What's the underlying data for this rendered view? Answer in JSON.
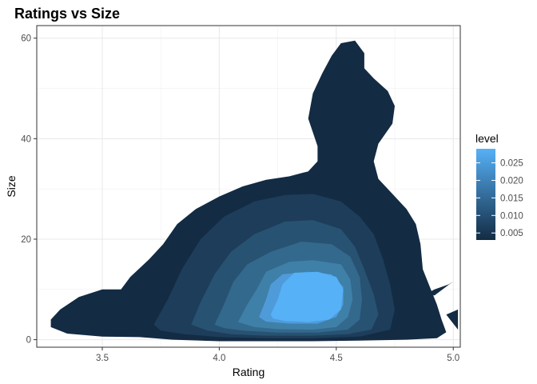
{
  "chart_data": {
    "type": "contour",
    "title": "Ratings vs Size",
    "xlabel": "Rating",
    "ylabel": "Size",
    "xlim": [
      3.22,
      5.03
    ],
    "ylim": [
      -1.5,
      62.5
    ],
    "x_ticks": [
      3.5,
      4.0,
      4.5,
      5.0
    ],
    "x_tick_labels": [
      "3.5",
      "4.0",
      "4.5",
      "5.0"
    ],
    "y_ticks": [
      0,
      20,
      40,
      60
    ],
    "y_tick_labels": [
      "0",
      "20",
      "40",
      "60"
    ],
    "grid": true,
    "legend": {
      "title": "level",
      "position": "right",
      "color_low": "#132B43",
      "color_high": "#56B1F7",
      "range": [
        0.003,
        0.029
      ],
      "ticks": [
        0.005,
        0.01,
        0.015,
        0.02,
        0.025
      ],
      "tick_labels": [
        "0.005",
        "0.010",
        "0.015",
        "0.020",
        "0.025"
      ]
    },
    "levels": [
      {
        "level": 0.005,
        "color": "#132B43",
        "polygons": [
          [
            [
              3.28,
              4
            ],
            [
              3.32,
              6
            ],
            [
              3.4,
              8.5
            ],
            [
              3.5,
              10
            ],
            [
              3.58,
              10
            ],
            [
              3.62,
              12.5
            ],
            [
              3.7,
              16
            ],
            [
              3.76,
              19
            ],
            [
              3.82,
              23
            ],
            [
              3.9,
              26
            ],
            [
              4.0,
              28.5
            ],
            [
              4.1,
              30.5
            ],
            [
              4.2,
              31.8
            ],
            [
              4.3,
              32.5
            ],
            [
              4.38,
              33.5
            ],
            [
              4.42,
              35.5
            ],
            [
              4.42,
              38.5
            ],
            [
              4.38,
              44
            ],
            [
              4.4,
              49
            ],
            [
              4.44,
              53
            ],
            [
              4.48,
              56.5
            ],
            [
              4.52,
              59
            ],
            [
              4.58,
              59.5
            ],
            [
              4.62,
              57
            ],
            [
              4.62,
              54
            ],
            [
              4.66,
              52
            ],
            [
              4.72,
              49.5
            ],
            [
              4.75,
              46.5
            ],
            [
              4.74,
              43
            ],
            [
              4.68,
              39
            ],
            [
              4.66,
              35.5
            ],
            [
              4.68,
              32
            ],
            [
              4.74,
              29
            ],
            [
              4.8,
              26
            ],
            [
              4.84,
              23
            ],
            [
              4.86,
              19
            ],
            [
              4.87,
              14
            ],
            [
              4.9,
              10.5
            ],
            [
              4.93,
              7
            ],
            [
              4.95,
              4
            ],
            [
              4.97,
              1.5
            ],
            [
              4.93,
              0.3
            ],
            [
              4.8,
              0
            ],
            [
              4.6,
              -0.2
            ],
            [
              4.4,
              -0.3
            ],
            [
              4.2,
              -0.3
            ],
            [
              4.0,
              -0.3
            ],
            [
              3.8,
              0
            ],
            [
              3.66,
              0.5
            ],
            [
              3.5,
              0.6
            ],
            [
              3.35,
              1.2
            ],
            [
              3.28,
              2.5
            ]
          ],
          [
            [
              4.88,
              9
            ],
            [
              4.92,
              10
            ],
            [
              4.98,
              11
            ],
            [
              5.0,
              11.6
            ],
            [
              4.96,
              10.2
            ],
            [
              4.92,
              8.8
            ]
          ],
          [
            [
              4.97,
              5
            ],
            [
              5.02,
              6
            ],
            [
              5.02,
              2
            ]
          ]
        ]
      },
      {
        "level": 0.01,
        "color": "#1D3D5A",
        "polygons": [
          [
            [
              3.72,
              3
            ],
            [
              3.78,
              8
            ],
            [
              3.84,
              14
            ],
            [
              3.92,
              20
            ],
            [
              4.02,
              24.5
            ],
            [
              4.15,
              27.5
            ],
            [
              4.28,
              28.8
            ],
            [
              4.4,
              29
            ],
            [
              4.52,
              27.5
            ],
            [
              4.6,
              24.5
            ],
            [
              4.66,
              21
            ],
            [
              4.7,
              16
            ],
            [
              4.73,
              11
            ],
            [
              4.75,
              6
            ],
            [
              4.73,
              2
            ],
            [
              4.6,
              0.6
            ],
            [
              4.4,
              0.3
            ],
            [
              4.2,
              0.3
            ],
            [
              4.0,
              0.5
            ],
            [
              3.85,
              1.1
            ],
            [
              3.75,
              1.8
            ]
          ]
        ]
      },
      {
        "level": 0.015,
        "color": "#285272",
        "polygons": [
          [
            [
              3.88,
              3
            ],
            [
              3.92,
              7.5
            ],
            [
              3.98,
              13
            ],
            [
              4.05,
              17.5
            ],
            [
              4.15,
              21
            ],
            [
              4.28,
              23.5
            ],
            [
              4.4,
              23.8
            ],
            [
              4.52,
              22
            ],
            [
              4.58,
              18.5
            ],
            [
              4.62,
              14
            ],
            [
              4.66,
              9
            ],
            [
              4.68,
              5
            ],
            [
              4.65,
              2
            ],
            [
              4.55,
              1.1
            ],
            [
              4.4,
              0.8
            ],
            [
              4.2,
              0.8
            ],
            [
              4.05,
              1.1
            ],
            [
              3.95,
              1.8
            ]
          ]
        ]
      },
      {
        "level": 0.02,
        "color": "#33698C",
        "polygons": [
          [
            [
              3.98,
              3
            ],
            [
              4.02,
              7
            ],
            [
              4.06,
              11.5
            ],
            [
              4.12,
              15
            ],
            [
              4.22,
              17.5
            ],
            [
              4.35,
              19.5
            ],
            [
              4.48,
              19
            ],
            [
              4.56,
              16.5
            ],
            [
              4.6,
              12.5
            ],
            [
              4.61,
              8
            ],
            [
              4.6,
              4
            ],
            [
              4.55,
              2
            ],
            [
              4.42,
              1.4
            ],
            [
              4.25,
              1.4
            ],
            [
              4.1,
              1.8
            ],
            [
              4.02,
              2.3
            ]
          ]
        ]
      },
      {
        "level": 0.025,
        "color": "#3F80A8",
        "polygons": [
          [
            [
              4.08,
              3.5
            ],
            [
              4.12,
              7
            ],
            [
              4.16,
              10
            ],
            [
              4.2,
              13.5
            ],
            [
              4.3,
              15.5
            ],
            [
              4.4,
              15.8
            ],
            [
              4.52,
              15
            ],
            [
              4.56,
              12
            ],
            [
              4.57,
              8
            ],
            [
              4.55,
              4.5
            ],
            [
              4.5,
              2.5
            ],
            [
              4.4,
              2
            ],
            [
              4.25,
              2.1
            ],
            [
              4.15,
              2.5
            ]
          ]
        ]
      },
      {
        "level": 0.028,
        "color": "#4F9BDA",
        "polygons": [
          [
            [
              4.17,
              4.5
            ],
            [
              4.2,
              8
            ],
            [
              4.22,
              11
            ],
            [
              4.27,
              13
            ],
            [
              4.38,
              13.5
            ],
            [
              4.48,
              13
            ],
            [
              4.53,
              10.5
            ],
            [
              4.53,
              7
            ],
            [
              4.5,
              4.5
            ],
            [
              4.42,
              3.2
            ],
            [
              4.3,
              3.2
            ],
            [
              4.2,
              3.6
            ]
          ]
        ]
      },
      {
        "level": 0.029,
        "color": "#56B1F7",
        "polygons": [
          [
            [
              4.22,
              5
            ],
            [
              4.25,
              8
            ],
            [
              4.27,
              11
            ],
            [
              4.32,
              13.3
            ],
            [
              4.42,
              13.5
            ],
            [
              4.5,
              12.5
            ],
            [
              4.53,
              10
            ],
            [
              4.52,
              6
            ],
            [
              4.47,
              4
            ],
            [
              4.38,
              3.5
            ],
            [
              4.28,
              3.7
            ],
            [
              4.23,
              4.2
            ]
          ]
        ]
      }
    ]
  }
}
